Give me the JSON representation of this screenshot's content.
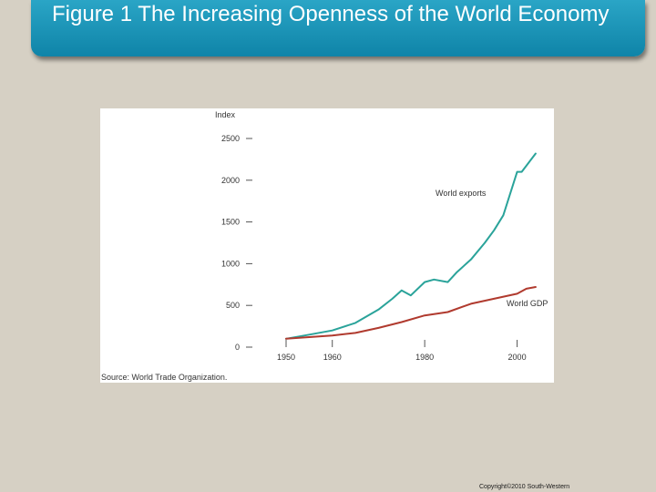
{
  "slide": {
    "title": "Figure 1 The Increasing Openness of the World Economy",
    "copyright": "Copyright©2010 South-Western"
  },
  "colors": {
    "title_bar": "#1a9abf",
    "exports_line": "#2aa39a",
    "gdp_line": "#b03a2e",
    "background": "#d6d0c4"
  },
  "chart_data": {
    "type": "line",
    "ylabel": "Index",
    "ylim": [
      0,
      2500
    ],
    "xlim": [
      1950,
      2006
    ],
    "yticks": [
      0,
      500,
      1000,
      1500,
      2000,
      2500
    ],
    "xticks": [
      1950,
      1960,
      1980,
      2000
    ],
    "source": "Source: World Trade Organization.",
    "series": [
      {
        "name": "World exports",
        "x": [
          1950,
          1955,
          1960,
          1965,
          1970,
          1973,
          1975,
          1977,
          1980,
          1982,
          1985,
          1987,
          1990,
          1993,
          1995,
          1997,
          2000,
          2001,
          2004
        ],
        "y": [
          100,
          150,
          200,
          290,
          450,
          580,
          680,
          620,
          780,
          810,
          780,
          900,
          1050,
          1250,
          1400,
          1580,
          2100,
          2100,
          2320
        ]
      },
      {
        "name": "World GDP",
        "x": [
          1950,
          1955,
          1960,
          1965,
          1970,
          1975,
          1980,
          1985,
          1990,
          1995,
          2000,
          2002,
          2004
        ],
        "y": [
          100,
          120,
          140,
          170,
          230,
          300,
          380,
          420,
          520,
          580,
          640,
          700,
          720
        ]
      }
    ]
  }
}
